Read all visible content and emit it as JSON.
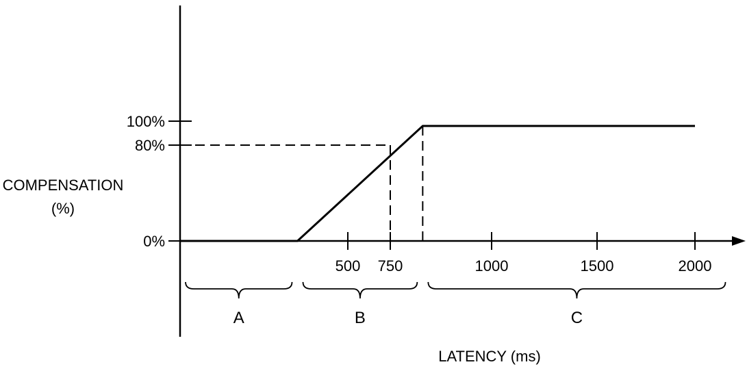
{
  "chart_data": {
    "type": "line",
    "xlabel": "LATENCY (ms)",
    "ylabel_line1": "COMPENSATION",
    "ylabel_line2": "(%)",
    "x_ticks": [
      {
        "value": 500,
        "label": "500"
      },
      {
        "value": 750,
        "label": "750"
      },
      {
        "value": 1000,
        "label": "1000"
      },
      {
        "value": 1500,
        "label": "1500"
      },
      {
        "value": 2000,
        "label": "2000"
      }
    ],
    "y_ticks": [
      {
        "value": 0,
        "label": "0%"
      },
      {
        "value": 80,
        "label": "80%"
      },
      {
        "value": 100,
        "label": "100%"
      }
    ],
    "series": [
      {
        "points": [
          {
            "x": 0,
            "y": 0
          },
          {
            "x": 350,
            "y": 0
          },
          {
            "x": 830,
            "y": 96
          },
          {
            "x": 2000,
            "y": 96
          }
        ]
      }
    ],
    "reference_lines": [
      {
        "from": {
          "x": 0,
          "y": 80
        },
        "to": {
          "x": 750,
          "y": 80
        }
      },
      {
        "from": {
          "x": 750,
          "y": 80
        },
        "to": {
          "x": 750,
          "y": 0
        }
      },
      {
        "from": {
          "x": 830,
          "y": 96
        },
        "to": {
          "x": 830,
          "y": 0
        }
      }
    ],
    "regions": [
      {
        "label": "A",
        "x_start": 0,
        "x_end": 350
      },
      {
        "label": "B",
        "x_start": 350,
        "x_end": 830
      },
      {
        "label": "C",
        "x_start": 830,
        "x_end": 2150
      }
    ],
    "xlim": [
      0,
      2200
    ],
    "ylim": [
      0,
      100
    ],
    "grid": false,
    "color": "#000000"
  }
}
